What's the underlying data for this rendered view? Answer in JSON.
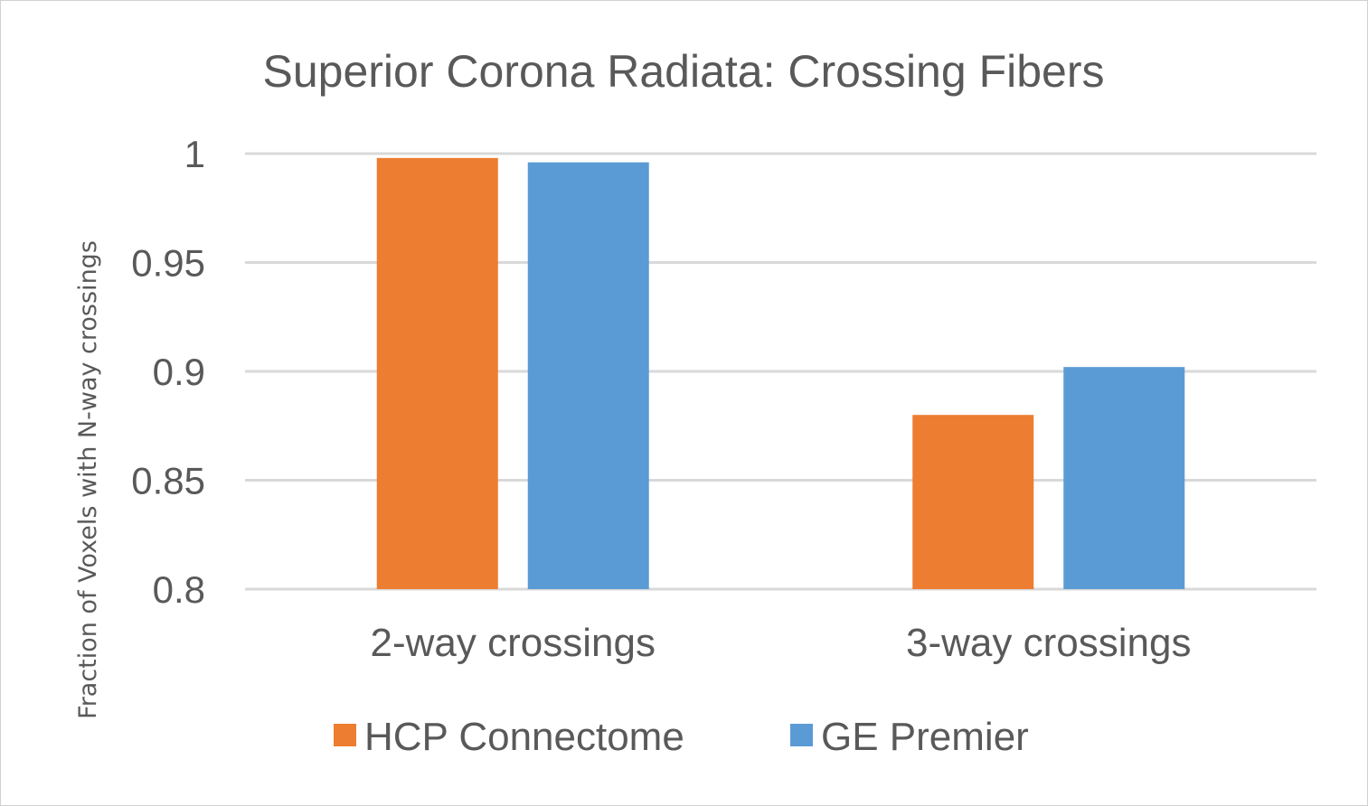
{
  "chart_data": {
    "type": "bar",
    "title": "Superior Corona Radiata: Crossing Fibers",
    "xlabel": "",
    "ylabel": "Fraction of Voxels with N-way crossings",
    "categories": [
      "2-way crossings",
      "3-way crossings"
    ],
    "series": [
      {
        "name": "HCP Connectome",
        "color": "#ED7D31",
        "values": [
          0.998,
          0.88
        ]
      },
      {
        "name": "GE Premier",
        "color": "#5B9BD5",
        "values": [
          0.996,
          0.902
        ]
      }
    ],
    "ylim": [
      0.8,
      1.0
    ],
    "yticks": [
      0.8,
      0.85,
      0.9,
      0.95,
      1
    ],
    "ytick_labels": [
      "0.8",
      "0.85",
      "0.9",
      "0.95",
      "1"
    ],
    "grid": true,
    "legend_position": "bottom"
  }
}
